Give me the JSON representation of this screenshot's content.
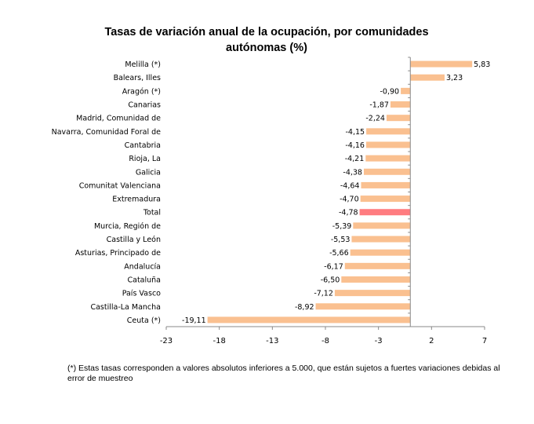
{
  "chart_data": {
    "type": "bar",
    "orientation": "horizontal",
    "title": "Tasas de variación anual de la ocupación, por comunidades autónomas (%)",
    "categories": [
      "Melilla (*)",
      "Balears, Illes",
      "Aragón (*)",
      "Canarias",
      "Madrid, Comunidad de",
      "Navarra, Comunidad Foral de",
      "Cantabria",
      "Rioja, La",
      "Galicia",
      "Comunitat Valenciana",
      "Extremadura",
      "Total",
      "Murcia, Región de",
      "Castilla y León",
      "Asturias, Principado de",
      "Andalucía",
      "Cataluña",
      "País Vasco",
      "Castilla-La Mancha",
      "Ceuta (*)"
    ],
    "values": [
      5.83,
      3.23,
      -0.9,
      -1.87,
      -2.24,
      -4.15,
      -4.16,
      -4.21,
      -4.38,
      -4.64,
      -4.7,
      -4.78,
      -5.39,
      -5.53,
      -5.66,
      -6.17,
      -6.5,
      -7.12,
      -8.92,
      -19.11
    ],
    "value_labels": [
      "5,83",
      "3,23",
      "-0,90",
      "-1,87",
      "-2,24",
      "-4,15",
      "-4,16",
      "-4,21",
      "-4,38",
      "-4,64",
      "-4,70",
      "-4,78",
      "-5,39",
      "-5,53",
      "-5,66",
      "-6,17",
      "-6,50",
      "-7,12",
      "-8,92",
      "-19,11"
    ],
    "xticks": [
      -23,
      -18,
      -13,
      -8,
      -3,
      2,
      7
    ],
    "xlim": [
      -23,
      7
    ],
    "grid": false,
    "legend": "none",
    "colors": {
      "bar": "#FAC090",
      "highlight": "#FF7C80",
      "highlight_category": "Total",
      "axis": "#888888"
    }
  },
  "footnote": "(*) Estas tasas corresponden a valores absolutos inferiores a 5.000, que están sujetos a fuertes variaciones debidas al error de muestreo"
}
